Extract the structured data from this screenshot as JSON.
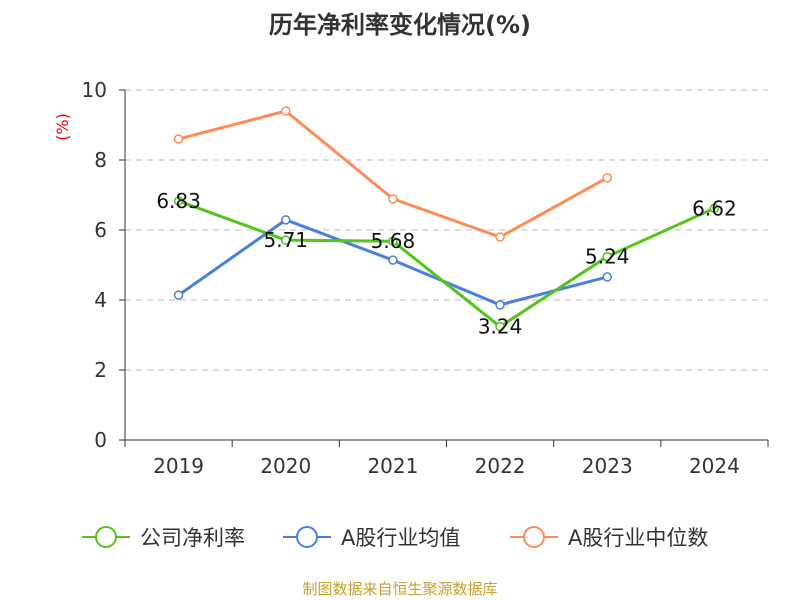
{
  "chart_data": {
    "type": "line",
    "title": "历年净利率变化情况(%)",
    "ylabel": "(%)",
    "categories": [
      "2019",
      "2020",
      "2021",
      "2022",
      "2023",
      "2024"
    ],
    "ylim": [
      0,
      10
    ],
    "yticks": [
      "0",
      "2",
      "4",
      "6",
      "8",
      "10"
    ],
    "grid": true,
    "legend_position": "bottom",
    "series": [
      {
        "name": "公司净利率",
        "color": "#52c41a",
        "values": [
          6.83,
          5.71,
          5.68,
          3.24,
          5.24,
          6.62
        ],
        "labels": [
          "6.83",
          "5.71",
          "5.68",
          "3.24",
          "5.24",
          "6.62"
        ]
      },
      {
        "name": "A股行业均值",
        "color": "#4a7fe0",
        "values": [
          4.14,
          6.29,
          5.14,
          3.86,
          4.66,
          null
        ]
      },
      {
        "name": "A股行业中位数",
        "color": "#ff8c55",
        "values": [
          8.6,
          9.4,
          6.89,
          5.8,
          7.49,
          null
        ]
      }
    ]
  },
  "source": "制图数据来自恒生聚源数据库"
}
